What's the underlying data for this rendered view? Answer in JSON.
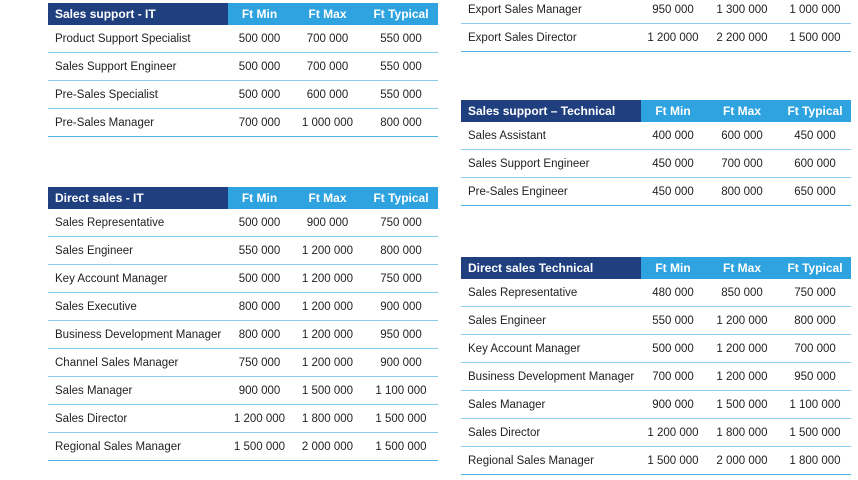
{
  "columns": {
    "min": "Ft Min",
    "max": "Ft Max",
    "typical": "Ft Typical"
  },
  "tables": {
    "sales_support_it": {
      "title": "Sales support - IT",
      "rows": [
        {
          "role": "Product Support Specialist",
          "min": "500 000",
          "max": "700 000",
          "typical": "550 000"
        },
        {
          "role": "Sales Support Engineer",
          "min": "500 000",
          "max": "700 000",
          "typical": "550 000"
        },
        {
          "role": "Pre-Sales Specialist",
          "min": "500 000",
          "max": "600 000",
          "typical": "550 000"
        },
        {
          "role": "Pre-Sales Manager",
          "min": "700 000",
          "max": "1 000 000",
          "typical": "800 000"
        }
      ]
    },
    "direct_sales_it": {
      "title": "Direct sales - IT",
      "rows": [
        {
          "role": "Sales Representative",
          "min": "500 000",
          "max": "900 000",
          "typical": "750 000"
        },
        {
          "role": "Sales Engineer",
          "min": "550 000",
          "max": "1 200 000",
          "typical": "800 000"
        },
        {
          "role": "Key Account Manager",
          "min": "500 000",
          "max": "1 200 000",
          "typical": "750 000"
        },
        {
          "role": "Sales Executive",
          "min": "800 000",
          "max": "1 200 000",
          "typical": "900 000"
        },
        {
          "role": "Business Development Manager",
          "min": "800 000",
          "max": "1 200 000",
          "typical": "950 000"
        },
        {
          "role": "Channel Sales Manager",
          "min": "750 000",
          "max": "1 200 000",
          "typical": "900 000"
        },
        {
          "role": "Sales Manager",
          "min": "900 000",
          "max": "1 500 000",
          "typical": "1 100 000"
        },
        {
          "role": "Sales Director",
          "min": "1 200 000",
          "max": "1 800 000",
          "typical": "1 500 000"
        },
        {
          "role": "Regional Sales Manager",
          "min": "1 500 000",
          "max": "2 000 000",
          "typical": "1 500 000"
        }
      ]
    },
    "export_sales": {
      "rows": [
        {
          "role": "Export Sales Manager",
          "min": "950 000",
          "max": "1 300 000",
          "typical": "1 000 000"
        },
        {
          "role": "Export Sales Director",
          "min": "1 200 000",
          "max": "2 200 000",
          "typical": "1 500 000"
        }
      ]
    },
    "sales_support_technical": {
      "title": "Sales support – Technical",
      "rows": [
        {
          "role": "Sales Assistant",
          "min": "400 000",
          "max": "600 000",
          "typical": "450 000"
        },
        {
          "role": "Sales Support Engineer",
          "min": "450 000",
          "max": "700 000",
          "typical": "600 000"
        },
        {
          "role": "Pre-Sales Engineer",
          "min": "450 000",
          "max": "800 000",
          "typical": "650 000"
        }
      ]
    },
    "direct_sales_technical": {
      "title": "Direct sales Technical",
      "rows": [
        {
          "role": "Sales Representative",
          "min": "480 000",
          "max": "850 000",
          "typical": "750 000"
        },
        {
          "role": "Sales Engineer",
          "min": "550 000",
          "max": "1 200 000",
          "typical": "800 000"
        },
        {
          "role": "Key Account Manager",
          "min": "500 000",
          "max": "1 200 000",
          "typical": "700 000"
        },
        {
          "role": "Business Development Manager",
          "min": "700 000",
          "max": "1 200 000",
          "typical": "950 000"
        },
        {
          "role": "Sales Manager",
          "min": "900 000",
          "max": "1 500 000",
          "typical": "1 100 000"
        },
        {
          "role": "Sales Director",
          "min": "1 200 000",
          "max": "1 800 000",
          "typical": "1 500 000"
        },
        {
          "role": "Regional Sales Manager",
          "min": "1 500 000",
          "max": "2 000 000",
          "typical": "1 800 000"
        }
      ]
    }
  }
}
